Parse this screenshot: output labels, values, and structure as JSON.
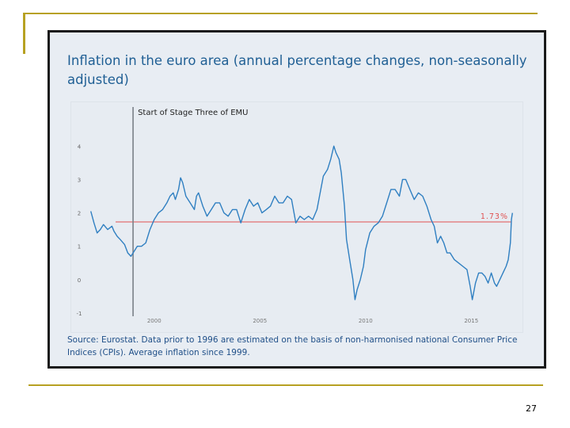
{
  "slide": {
    "page_number": "27"
  },
  "chart_data": {
    "type": "line",
    "title": "Inflation in the euro area (annual percentage changes, non-seasonally adjusted)",
    "source": "Source: Eurostat. Data prior to 1996 are estimated on the basis of non-harmonised national Consumer Price Indices (CPIs). Average inflation since 1999.",
    "xlabel": "",
    "ylabel": "",
    "xlim": [
      1996.9,
      2016.9
    ],
    "ylim": [
      -1,
      4.6
    ],
    "x_ticks": [
      2000,
      2005,
      2010,
      2015
    ],
    "y_ticks": [
      -1,
      0,
      1,
      2,
      3,
      4
    ],
    "tick_labels_x": [
      "2000",
      "2005",
      "2010",
      "2015"
    ],
    "tick_labels_y": [
      "-1",
      "0",
      "1",
      "2",
      "3",
      "4"
    ],
    "colors": {
      "series": "#2f7fc1",
      "average": "#e05050",
      "marker": "#7a8088",
      "title": "#1f5f94"
    },
    "average_line": {
      "value": 1.73,
      "label": "1.73%"
    },
    "vertical_marker": {
      "x": 1999.0,
      "label": "Start of Stage Three of EMU"
    },
    "series": [
      {
        "name": "Euro area inflation",
        "points": [
          [
            1997.0,
            2.05
          ],
          [
            1997.15,
            1.7
          ],
          [
            1997.3,
            1.4
          ],
          [
            1997.45,
            1.5
          ],
          [
            1997.6,
            1.65
          ],
          [
            1997.8,
            1.5
          ],
          [
            1998.0,
            1.6
          ],
          [
            1998.1,
            1.45
          ],
          [
            1998.25,
            1.3
          ],
          [
            1998.4,
            1.2
          ],
          [
            1998.6,
            1.05
          ],
          [
            1998.75,
            0.8
          ],
          [
            1998.9,
            0.7
          ],
          [
            1999.0,
            0.8
          ],
          [
            1999.2,
            1.0
          ],
          [
            1999.4,
            1.0
          ],
          [
            1999.6,
            1.1
          ],
          [
            1999.8,
            1.5
          ],
          [
            2000.0,
            1.8
          ],
          [
            2000.2,
            2.0
          ],
          [
            2000.4,
            2.1
          ],
          [
            2000.6,
            2.3
          ],
          [
            2000.75,
            2.5
          ],
          [
            2000.9,
            2.6
          ],
          [
            2001.0,
            2.4
          ],
          [
            2001.15,
            2.7
          ],
          [
            2001.25,
            3.05
          ],
          [
            2001.35,
            2.9
          ],
          [
            2001.5,
            2.5
          ],
          [
            2001.7,
            2.3
          ],
          [
            2001.9,
            2.1
          ],
          [
            2002.0,
            2.5
          ],
          [
            2002.1,
            2.6
          ],
          [
            2002.3,
            2.2
          ],
          [
            2002.5,
            1.9
          ],
          [
            2002.7,
            2.1
          ],
          [
            2002.9,
            2.3
          ],
          [
            2003.1,
            2.3
          ],
          [
            2003.3,
            2.0
          ],
          [
            2003.5,
            1.9
          ],
          [
            2003.7,
            2.1
          ],
          [
            2003.9,
            2.1
          ],
          [
            2004.1,
            1.7
          ],
          [
            2004.3,
            2.1
          ],
          [
            2004.5,
            2.4
          ],
          [
            2004.7,
            2.2
          ],
          [
            2004.9,
            2.3
          ],
          [
            2005.1,
            2.0
          ],
          [
            2005.3,
            2.1
          ],
          [
            2005.5,
            2.2
          ],
          [
            2005.7,
            2.5
          ],
          [
            2005.9,
            2.3
          ],
          [
            2006.1,
            2.3
          ],
          [
            2006.3,
            2.5
          ],
          [
            2006.5,
            2.4
          ],
          [
            2006.7,
            1.7
          ],
          [
            2006.9,
            1.9
          ],
          [
            2007.1,
            1.8
          ],
          [
            2007.3,
            1.9
          ],
          [
            2007.5,
            1.8
          ],
          [
            2007.7,
            2.1
          ],
          [
            2007.85,
            2.6
          ],
          [
            2008.0,
            3.1
          ],
          [
            2008.2,
            3.3
          ],
          [
            2008.35,
            3.6
          ],
          [
            2008.5,
            4.0
          ],
          [
            2008.6,
            3.8
          ],
          [
            2008.75,
            3.6
          ],
          [
            2008.85,
            3.2
          ],
          [
            2009.0,
            2.2
          ],
          [
            2009.1,
            1.2
          ],
          [
            2009.25,
            0.6
          ],
          [
            2009.4,
            0.0
          ],
          [
            2009.5,
            -0.6
          ],
          [
            2009.6,
            -0.3
          ],
          [
            2009.75,
            0.0
          ],
          [
            2009.9,
            0.4
          ],
          [
            2010.0,
            0.9
          ],
          [
            2010.2,
            1.4
          ],
          [
            2010.4,
            1.6
          ],
          [
            2010.6,
            1.7
          ],
          [
            2010.8,
            1.9
          ],
          [
            2011.0,
            2.3
          ],
          [
            2011.2,
            2.7
          ],
          [
            2011.4,
            2.7
          ],
          [
            2011.6,
            2.5
          ],
          [
            2011.75,
            3.0
          ],
          [
            2011.9,
            3.0
          ],
          [
            2012.1,
            2.7
          ],
          [
            2012.3,
            2.4
          ],
          [
            2012.5,
            2.6
          ],
          [
            2012.7,
            2.5
          ],
          [
            2012.9,
            2.2
          ],
          [
            2013.1,
            1.8
          ],
          [
            2013.25,
            1.6
          ],
          [
            2013.4,
            1.1
          ],
          [
            2013.55,
            1.3
          ],
          [
            2013.7,
            1.1
          ],
          [
            2013.85,
            0.8
          ],
          [
            2014.0,
            0.8
          ],
          [
            2014.2,
            0.6
          ],
          [
            2014.4,
            0.5
          ],
          [
            2014.6,
            0.4
          ],
          [
            2014.8,
            0.3
          ],
          [
            2014.95,
            -0.2
          ],
          [
            2015.05,
            -0.6
          ],
          [
            2015.2,
            -0.1
          ],
          [
            2015.35,
            0.2
          ],
          [
            2015.5,
            0.2
          ],
          [
            2015.65,
            0.1
          ],
          [
            2015.8,
            -0.1
          ],
          [
            2015.95,
            0.2
          ],
          [
            2016.1,
            -0.1
          ],
          [
            2016.2,
            -0.2
          ],
          [
            2016.35,
            0.0
          ],
          [
            2016.5,
            0.2
          ],
          [
            2016.65,
            0.4
          ],
          [
            2016.75,
            0.6
          ],
          [
            2016.85,
            1.1
          ],
          [
            2016.9,
            1.8
          ],
          [
            2016.95,
            2.0
          ]
        ]
      }
    ]
  }
}
